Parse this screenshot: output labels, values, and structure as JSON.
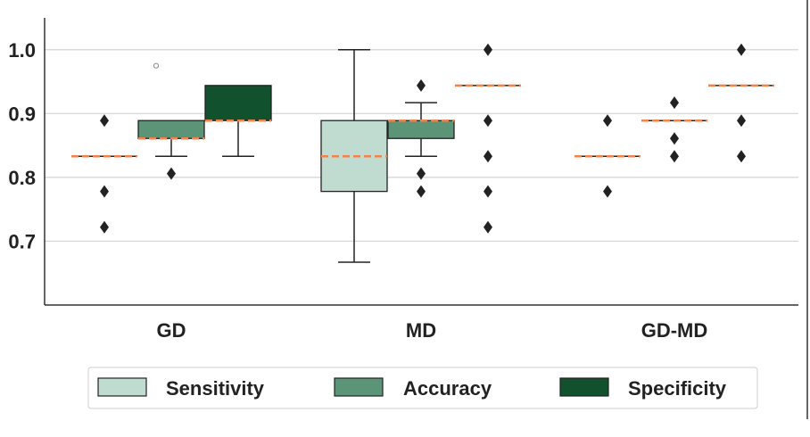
{
  "colors": {
    "sensitivity": "#c0dbcf",
    "accuracy": "#5c9478",
    "specificity": "#12512d",
    "median": "#f5824a",
    "grid": "#d4d4d4",
    "axis": "#333333"
  },
  "chart_data": {
    "type": "box",
    "categories": [
      "GD",
      "MD",
      "GD-MD"
    ],
    "ylim": [
      0.6,
      1.05
    ],
    "yticks": [
      "0.7",
      "0.8",
      "0.9",
      "1.0"
    ],
    "grid": true,
    "legend_position": "bottom",
    "series": [
      {
        "name": "Sensitivity",
        "boxes": [
          {
            "q1": 0.833,
            "median": 0.833,
            "q3": 0.833,
            "whisker_low": 0.833,
            "whisker_high": 0.833,
            "outliers": [
              0.889,
              0.778,
              0.722
            ],
            "outlier_marker": "diamond"
          },
          {
            "q1": 0.778,
            "median": 0.833,
            "q3": 0.889,
            "whisker_low": 0.667,
            "whisker_high": 1.0,
            "outliers": [],
            "outlier_marker": "diamond"
          },
          {
            "q1": 0.833,
            "median": 0.833,
            "q3": 0.833,
            "whisker_low": 0.833,
            "whisker_high": 0.833,
            "outliers": [
              0.889,
              0.778
            ],
            "outlier_marker": "diamond"
          }
        ]
      },
      {
        "name": "Accuracy",
        "boxes": [
          {
            "q1": 0.861,
            "median": 0.861,
            "q3": 0.889,
            "whisker_low": 0.833,
            "whisker_high": 0.889,
            "outliers": [
              0.806
            ],
            "outlier_marker": "diamond",
            "fliers_circle": [
              0.975
            ]
          },
          {
            "q1": 0.861,
            "median": 0.889,
            "q3": 0.889,
            "whisker_low": 0.833,
            "whisker_high": 0.917,
            "outliers": [
              0.944,
              0.806,
              0.778
            ],
            "outlier_marker": "diamond"
          },
          {
            "q1": 0.889,
            "median": 0.889,
            "q3": 0.889,
            "whisker_low": 0.889,
            "whisker_high": 0.889,
            "outliers": [
              0.917,
              0.861,
              0.833
            ],
            "outlier_marker": "diamond"
          }
        ]
      },
      {
        "name": "Specificity",
        "boxes": [
          {
            "q1": 0.889,
            "median": 0.889,
            "q3": 0.944,
            "whisker_low": 0.833,
            "whisker_high": 0.944,
            "outliers": [],
            "outlier_marker": "diamond"
          },
          {
            "q1": 0.944,
            "median": 0.944,
            "q3": 0.944,
            "whisker_low": 0.944,
            "whisker_high": 0.944,
            "outliers": [
              1.0,
              0.889,
              0.833,
              0.778,
              0.722
            ],
            "outlier_marker": "diamond"
          },
          {
            "q1": 0.944,
            "median": 0.944,
            "q3": 0.944,
            "whisker_low": 0.944,
            "whisker_high": 0.944,
            "outliers": [
              1.0,
              0.889,
              0.833
            ],
            "outlier_marker": "diamond"
          }
        ]
      }
    ]
  }
}
